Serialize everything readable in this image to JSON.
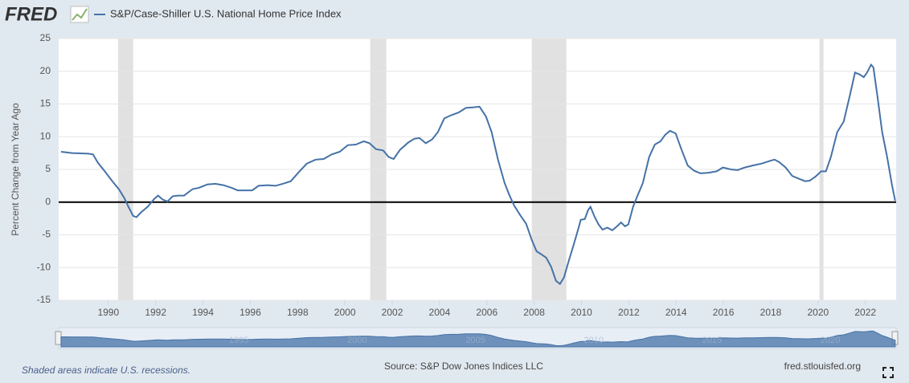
{
  "logo": "FRED",
  "chart_data": {
    "type": "line",
    "y_label": "Percent Change from Year Ago",
    "recession_note": "Shaded areas indicate U.S. recessions.",
    "source": "Source: S&P Dow Jones Indices LLC",
    "site": "fred.stlouisfed.org",
    "xlim": [
      1987.9,
      2023.3
    ],
    "xticks": [
      1990,
      1992,
      1994,
      1996,
      1998,
      2000,
      2002,
      2004,
      2006,
      2008,
      2010,
      2012,
      2014,
      2016,
      2018,
      2020,
      2022
    ],
    "ylim": [
      -15,
      25
    ],
    "yticks": [
      -15,
      -10,
      -5,
      0,
      5,
      10,
      15,
      20,
      25
    ],
    "grid": true,
    "recessions": [
      [
        1990.41,
        1991.05
      ],
      [
        2001.07,
        2001.75
      ],
      [
        2007.9,
        2009.36
      ],
      [
        2020.06,
        2020.23
      ]
    ],
    "navigator_ticks": [
      1995,
      2000,
      2005,
      2010,
      2015,
      2020
    ],
    "x": [
      1988.0,
      1988.47,
      1989.15,
      1989.35,
      1989.56,
      1989.83,
      1990.17,
      1990.44,
      1990.68,
      1990.85,
      1991.05,
      1991.19,
      1991.4,
      1991.66,
      1991.94,
      1992.1,
      1992.3,
      1992.5,
      1992.72,
      1992.95,
      1993.2,
      1993.56,
      1993.84,
      1994.18,
      1994.52,
      1994.86,
      1995.2,
      1995.47,
      1995.77,
      1996.08,
      1996.35,
      1996.73,
      1997.07,
      1997.37,
      1997.71,
      1998.05,
      1998.39,
      1998.76,
      1999.1,
      1999.44,
      1999.78,
      2000.12,
      2000.46,
      2000.8,
      2001.04,
      2001.31,
      2001.62,
      2001.85,
      2002.06,
      2002.33,
      2002.67,
      2002.94,
      2003.15,
      2003.42,
      2003.69,
      2003.93,
      2004.2,
      2004.5,
      2004.81,
      2005.11,
      2005.45,
      2005.69,
      2005.96,
      2006.2,
      2006.47,
      2006.75,
      2006.95,
      2007.15,
      2007.43,
      2007.66,
      2007.9,
      2008.1,
      2008.31,
      2008.51,
      2008.72,
      2008.92,
      2009.09,
      2009.26,
      2009.46,
      2009.67,
      2009.87,
      2009.97,
      2010.14,
      2010.28,
      2010.38,
      2010.55,
      2010.72,
      2010.89,
      2011.09,
      2011.3,
      2011.5,
      2011.67,
      2011.84,
      2011.98,
      2012.18,
      2012.38,
      2012.59,
      2012.86,
      2013.1,
      2013.34,
      2013.54,
      2013.74,
      2013.98,
      2014.22,
      2014.49,
      2014.76,
      2015.03,
      2015.37,
      2015.71,
      2015.98,
      2016.32,
      2016.6,
      2016.9,
      2017.24,
      2017.62,
      2017.96,
      2018.16,
      2018.36,
      2018.63,
      2018.91,
      2019.18,
      2019.45,
      2019.65,
      2019.89,
      2020.13,
      2020.33,
      2020.54,
      2020.81,
      2021.08,
      2021.35,
      2021.56,
      2021.76,
      2021.93,
      2022.07,
      2022.24,
      2022.34,
      2022.51,
      2022.71,
      2022.92,
      2023.12,
      2023.26
    ],
    "series": [
      {
        "name": "S&P/Case-Shiller U.S. National Home Price Index",
        "color": "#4572a7",
        "values": [
          7.7,
          7.5,
          7.4,
          7.3,
          6.0,
          4.8,
          3.2,
          2.0,
          0.6,
          -0.7,
          -2.1,
          -2.3,
          -1.5,
          -0.7,
          0.5,
          1.0,
          0.4,
          0.1,
          0.9,
          1.0,
          1.0,
          2.0,
          2.2,
          2.7,
          2.8,
          2.6,
          2.2,
          1.8,
          1.8,
          1.8,
          2.5,
          2.6,
          2.5,
          2.8,
          3.2,
          4.6,
          5.9,
          6.5,
          6.6,
          7.3,
          7.7,
          8.7,
          8.8,
          9.3,
          9.0,
          8.1,
          7.9,
          6.9,
          6.6,
          8.0,
          9.1,
          9.7,
          9.8,
          9.0,
          9.6,
          10.7,
          12.8,
          13.3,
          13.7,
          14.4,
          14.5,
          14.6,
          13.1,
          10.7,
          6.5,
          2.9,
          1.1,
          -0.5,
          -2.1,
          -3.3,
          -5.8,
          -7.5,
          -8.0,
          -8.5,
          -9.9,
          -12.0,
          -12.5,
          -11.5,
          -9.0,
          -6.5,
          -4.0,
          -2.7,
          -2.6,
          -1.2,
          -0.7,
          -2.2,
          -3.4,
          -4.2,
          -3.9,
          -4.3,
          -3.7,
          -3.1,
          -3.7,
          -3.4,
          -0.7,
          1.1,
          2.9,
          6.9,
          8.8,
          9.3,
          10.3,
          10.9,
          10.5,
          8.1,
          5.6,
          4.8,
          4.4,
          4.5,
          4.7,
          5.3,
          5.0,
          4.9,
          5.3,
          5.6,
          5.9,
          6.3,
          6.5,
          6.1,
          5.3,
          4.0,
          3.6,
          3.2,
          3.3,
          3.9,
          4.7,
          4.7,
          6.9,
          10.7,
          12.3,
          16.4,
          19.8,
          19.5,
          19.1,
          19.8,
          21.0,
          20.6,
          16.2,
          10.7,
          6.9,
          2.7,
          0.2
        ]
      }
    ]
  }
}
